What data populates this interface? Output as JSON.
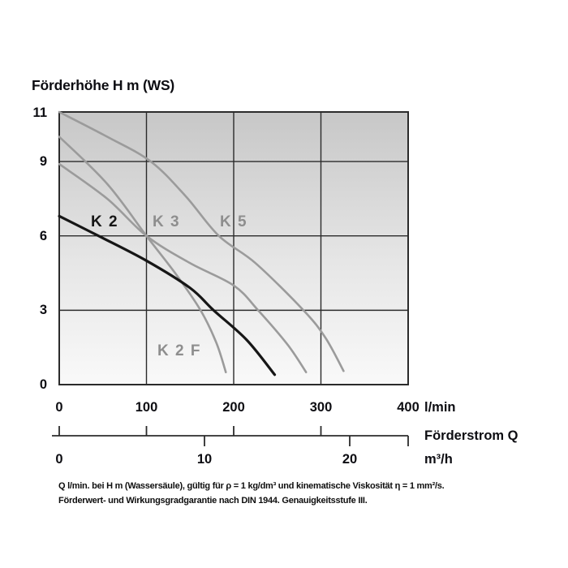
{
  "chart_data": {
    "type": "line",
    "title": "Förderhöhe H m (WS)",
    "x_axis": {
      "label": "l/min",
      "ticks": [
        "0",
        "100",
        "200",
        "300",
        "400"
      ],
      "tick_values": [
        0,
        100,
        200,
        300,
        400
      ],
      "gridlines": [
        100,
        200,
        300
      ],
      "range": [
        0,
        400
      ]
    },
    "y_axis": {
      "title": "Förderhöhe H m (WS)",
      "ticks": [
        "11",
        "9",
        "6",
        "3",
        "0"
      ],
      "tick_values": [
        11,
        9,
        6,
        3,
        0
      ],
      "gridlines": [
        9,
        6,
        3
      ],
      "range": [
        0,
        11
      ]
    },
    "x2_axis": {
      "series_label": "Förderstrom Q",
      "unit": "m³/h",
      "ticks": [
        "0",
        "10",
        "20"
      ],
      "tick_values_m3h": [
        0,
        10,
        20
      ],
      "tick_positions_lmin": [
        0,
        166.7,
        333.3
      ],
      "uptick_positions_lmin": [
        0,
        100,
        200,
        300
      ]
    },
    "grid": true,
    "legend": "inline curve labels",
    "plot_background": {
      "top_color": "#c7c7c7",
      "bottom_color": "#f9f9f9"
    },
    "series": [
      {
        "name": "K 5",
        "color": "#9b9b9b",
        "points": [
          [
            0,
            11.0
          ],
          [
            55,
            10.0
          ],
          [
            105,
            9.0
          ],
          [
            145,
            7.6
          ],
          [
            183,
            6.0
          ],
          [
            225,
            4.9
          ],
          [
            280,
            3.0
          ],
          [
            305,
            1.9
          ],
          [
            326,
            0.55
          ]
        ]
      },
      {
        "name": "K 3",
        "color": "#9b9b9b",
        "points": [
          [
            0,
            8.9
          ],
          [
            55,
            7.5
          ],
          [
            100,
            6.0
          ],
          [
            150,
            4.9
          ],
          [
            200,
            4.0
          ],
          [
            228,
            3.0
          ],
          [
            262,
            1.6
          ],
          [
            283,
            0.5
          ]
        ]
      },
      {
        "name": "K 2 F",
        "color": "#9b9b9b",
        "points": [
          [
            0,
            10.0
          ],
          [
            55,
            8.1
          ],
          [
            100,
            6.0
          ],
          [
            135,
            4.4
          ],
          [
            162,
            3.0
          ],
          [
            180,
            1.7
          ],
          [
            191,
            0.5
          ]
        ]
      },
      {
        "name": "K 2",
        "color": "#161616",
        "points": [
          [
            0,
            6.8
          ],
          [
            45,
            6.0
          ],
          [
            100,
            5.0
          ],
          [
            150,
            3.9
          ],
          [
            177,
            3.0
          ],
          [
            215,
            1.8
          ],
          [
            247,
            0.4
          ]
        ]
      }
    ]
  },
  "footnote": {
    "line1": "Q l/min. bei H m (Wassersäule), gültig für ρ = 1 kg/dm³ und kinematische Viskosität η = 1 mm²/s.",
    "line2": "Förderwert- und Wirkungsgradgarantie nach DIN 1944. Genauigkeitsstufe III."
  }
}
